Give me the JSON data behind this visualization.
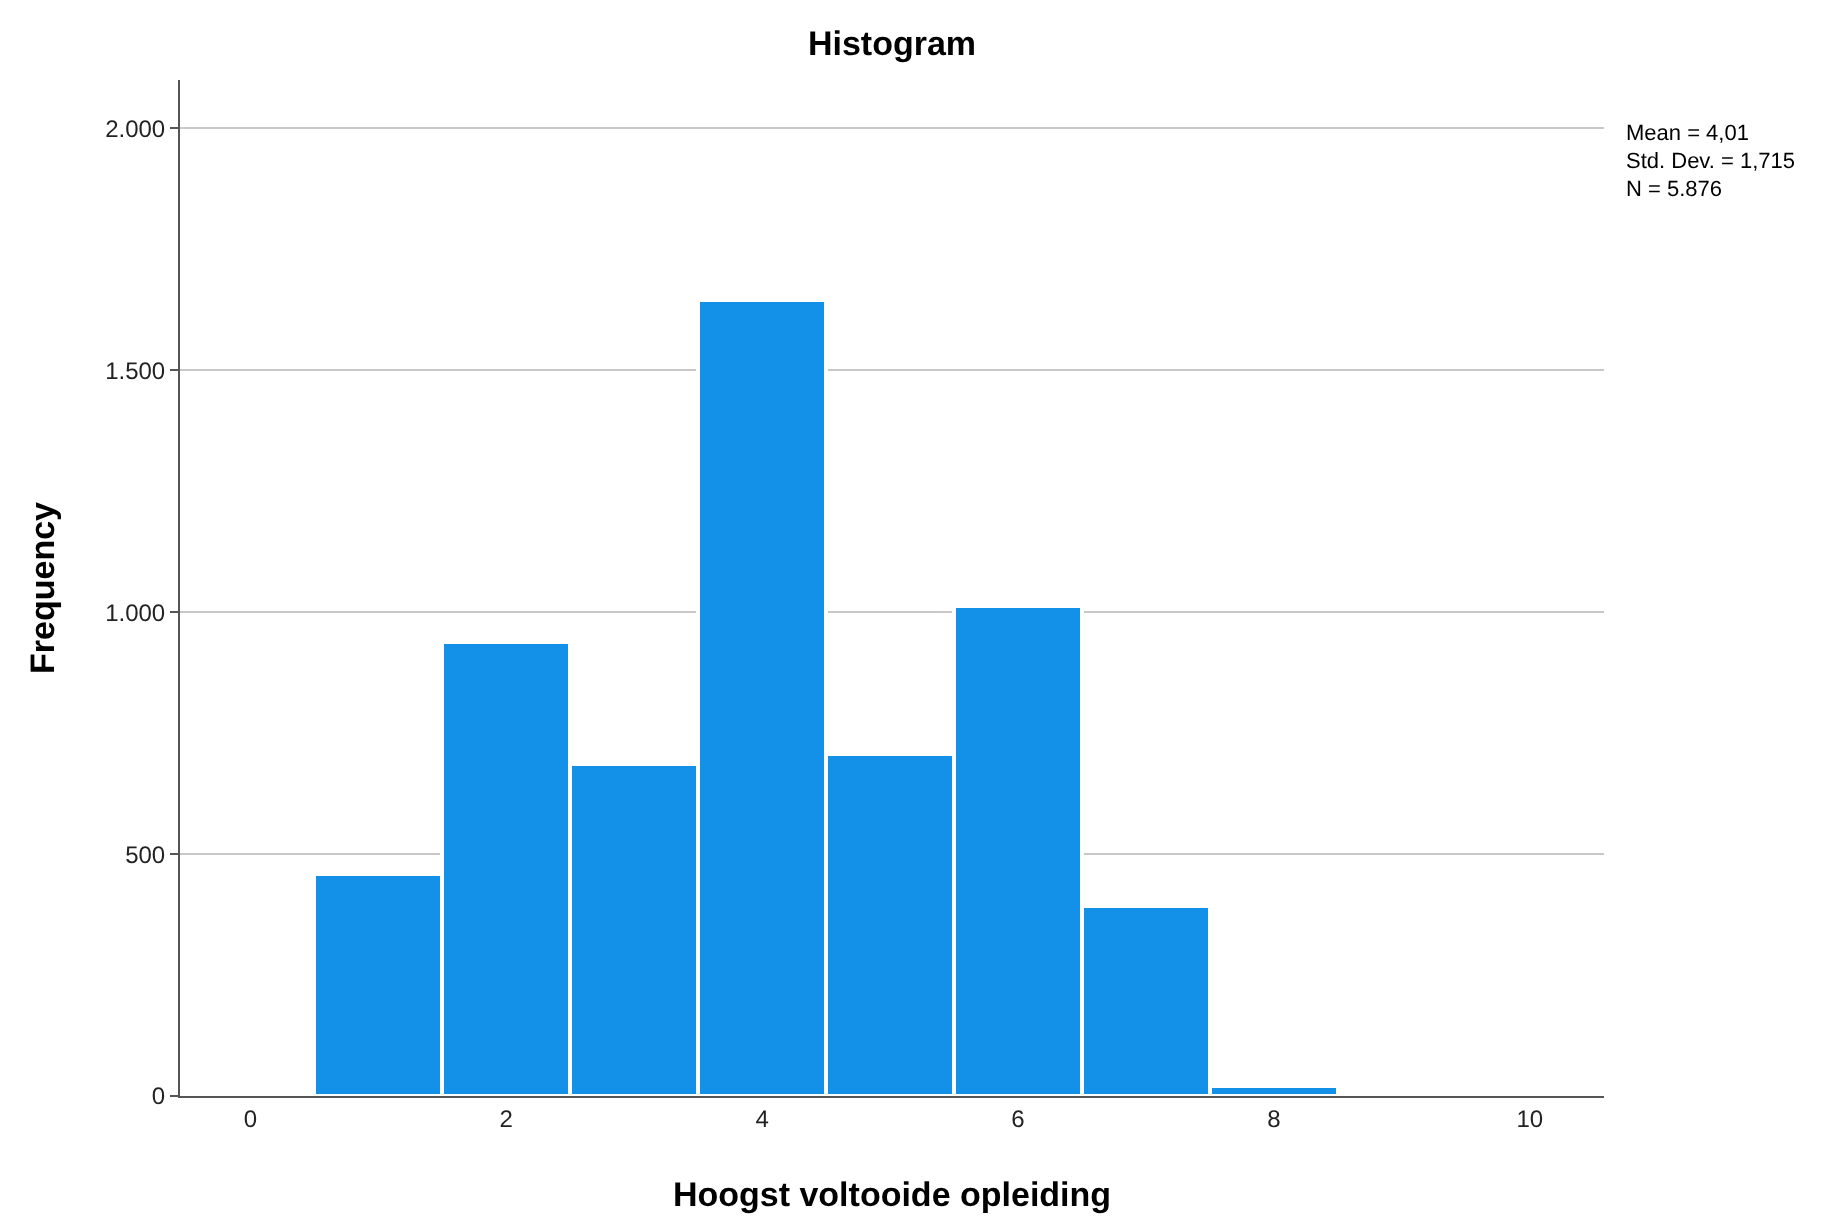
{
  "chart_data": {
    "type": "histogram",
    "title": "Histogram",
    "xlabel": "Hoogst voltooide opleiding",
    "ylabel": "Frequency",
    "bins": [
      0.5,
      1.5,
      2.5,
      3.5,
      4.5,
      5.5,
      6.5,
      7.5,
      8.5
    ],
    "values": [
      460,
      940,
      686,
      1647,
      706,
      1014,
      394,
      21
    ],
    "color": "#1390e8",
    "xlim": [
      -0.55,
      10.58
    ],
    "xticks": [
      0,
      2,
      4,
      6,
      8,
      10
    ],
    "ylim": [
      0,
      2100
    ],
    "yticks": [
      0,
      {
        "value": 500,
        "label": "500"
      },
      {
        "value": 1000,
        "label": "1.000"
      },
      {
        "value": 1500,
        "label": "1.500"
      },
      {
        "value": 2000,
        "label": "2.000"
      }
    ],
    "grid": "y",
    "legend": false,
    "annotations": [
      "Mean = 4,01",
      "Std. Dev. = 1,715",
      "N = 5.876"
    ]
  }
}
